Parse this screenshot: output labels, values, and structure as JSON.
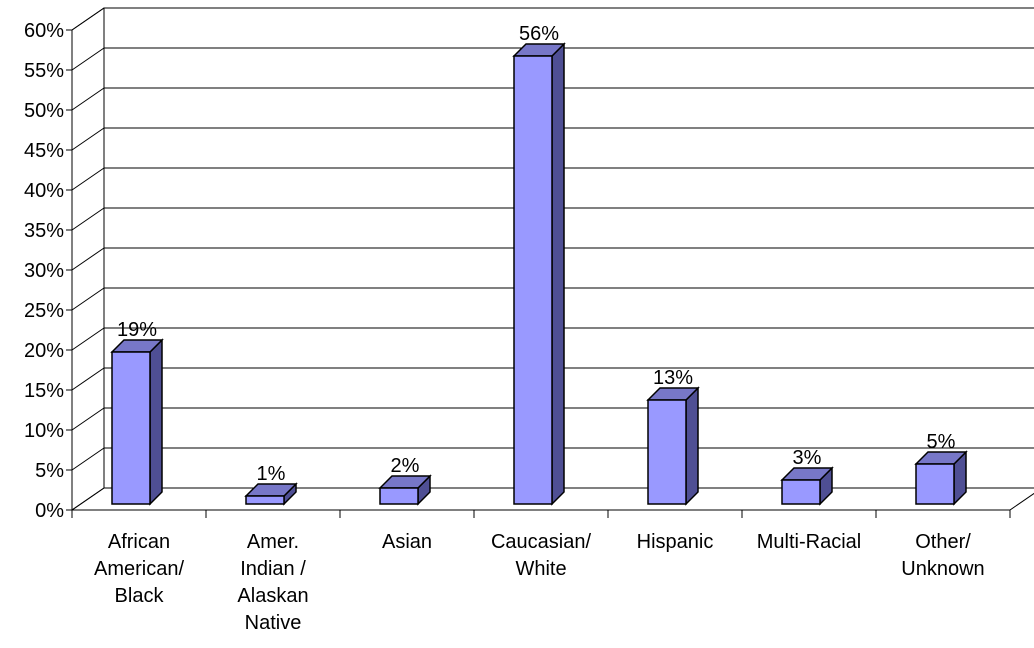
{
  "chart_data": {
    "type": "bar",
    "title": "",
    "xlabel": "",
    "ylabel": "",
    "ylim": [
      0,
      60
    ],
    "ytick_step": 5,
    "ytick_labels": [
      "0%",
      "5%",
      "10%",
      "15%",
      "20%",
      "25%",
      "30%",
      "35%",
      "40%",
      "45%",
      "50%",
      "55%",
      "60%"
    ],
    "grid": true,
    "style": "3d-column",
    "colors": {
      "bar_front": "#9999ff",
      "bar_side": "#4f4f94",
      "bar_top": "#7777c8",
      "outline": "#000000"
    },
    "categories": [
      [
        "African",
        "American/",
        "Black"
      ],
      [
        "Amer.",
        "Indian /",
        "Alaskan",
        "Native"
      ],
      [
        "Asian"
      ],
      [
        "Caucasian/",
        "White"
      ],
      [
        "Hispanic"
      ],
      [
        "Multi-Racial"
      ],
      [
        "Other/",
        "Unknown"
      ]
    ],
    "values": [
      19,
      1,
      2,
      56,
      13,
      3,
      5
    ],
    "data_labels": [
      "19%",
      "1%",
      "2%",
      "56%",
      "13%",
      "3%",
      "5%"
    ]
  }
}
